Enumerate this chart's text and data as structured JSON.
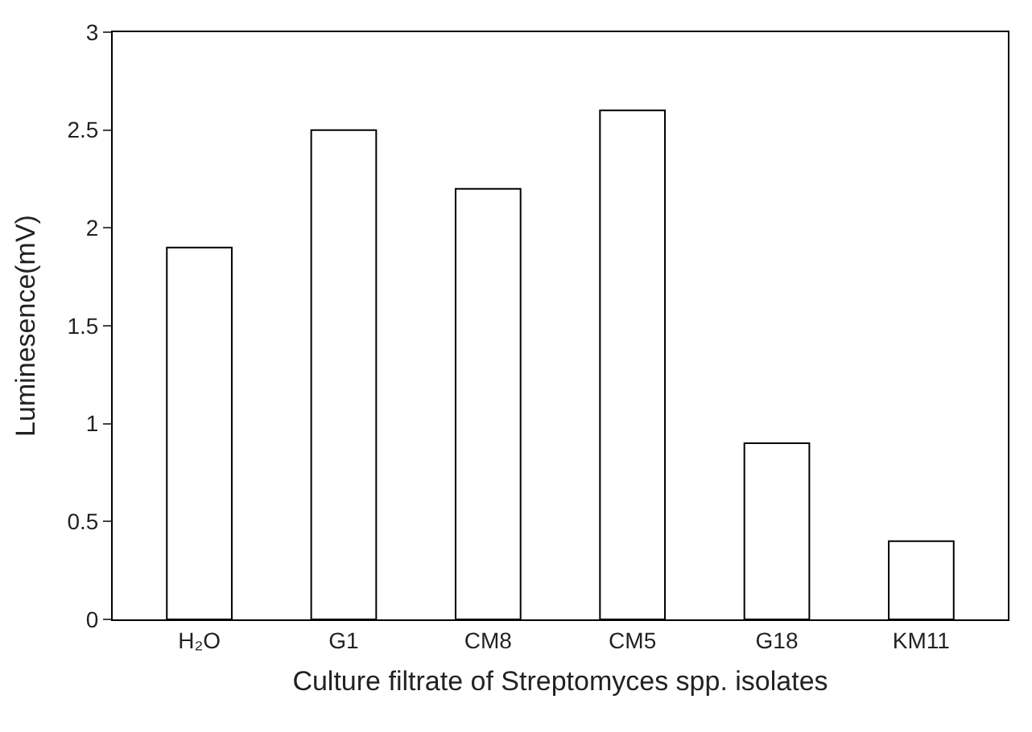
{
  "chart_data": {
    "type": "bar",
    "xlabel": "Culture filtrate of Streptomyces spp. isolates",
    "ylabel": "Luminesence(mV)",
    "categories": [
      "H₂O",
      "G1",
      "CM8",
      "CM5",
      "G18",
      "KM11"
    ],
    "values": [
      1.9,
      2.5,
      2.2,
      2.6,
      0.9,
      0.4
    ],
    "color": "#ffffff",
    "ylim": [
      0,
      3
    ],
    "yticks": [
      0,
      0.5,
      1,
      1.5,
      2,
      2.5,
      3
    ]
  }
}
